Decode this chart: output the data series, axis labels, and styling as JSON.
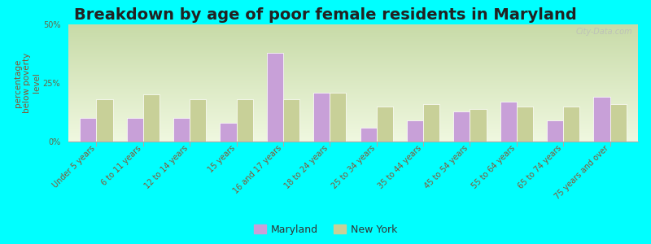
{
  "title": "Breakdown by age of poor female residents in Maryland",
  "ylabel": "percentage\nbelow poverty\nlevel",
  "categories": [
    "Under 5 years",
    "6 to 11 years",
    "12 to 14 years",
    "15 years",
    "16 and 17 years",
    "18 to 24 years",
    "25 to 34 years",
    "35 to 44 years",
    "45 to 54 years",
    "55 to 64 years",
    "65 to 74 years",
    "75 years and over"
  ],
  "maryland_values": [
    10,
    10,
    10,
    8,
    38,
    21,
    6,
    9,
    13,
    17,
    9,
    19
  ],
  "newyork_values": [
    18,
    20,
    18,
    18,
    18,
    21,
    15,
    16,
    14,
    15,
    15,
    16
  ],
  "maryland_color": "#c8a0d8",
  "newyork_color": "#c8d098",
  "bg_top": "#c8dba8",
  "bg_bottom": "#f0f8e0",
  "outer_bg": "#00ffff",
  "ylim": [
    0,
    50
  ],
  "yticks": [
    0,
    25,
    50
  ],
  "ytick_labels": [
    "0%",
    "25%",
    "50%"
  ],
  "bar_width": 0.35,
  "title_fontsize": 14,
  "ylabel_fontsize": 7.5,
  "tick_fontsize": 7,
  "legend_fontsize": 9
}
